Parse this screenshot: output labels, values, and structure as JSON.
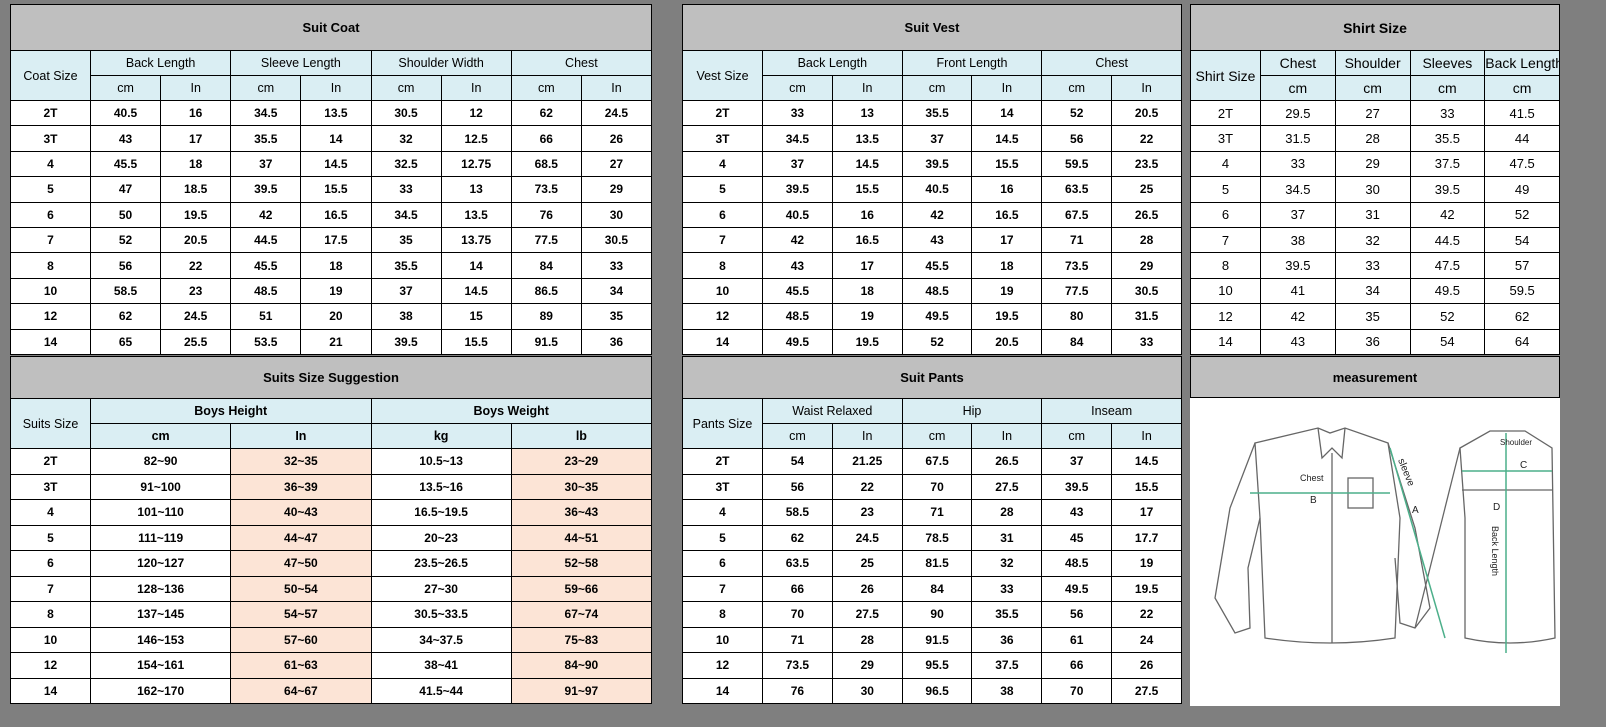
{
  "suit_coat": {
    "title": "Suit Coat",
    "size_label": "Coat Size",
    "groups": [
      "Back Length",
      "Sleeve Length",
      "Shoulder Width",
      "Chest"
    ],
    "units": [
      "cm",
      "In",
      "cm",
      "In",
      "cm",
      "In",
      "cm",
      "In"
    ],
    "rows": [
      [
        "2T",
        "40.5",
        "16",
        "34.5",
        "13.5",
        "30.5",
        "12",
        "62",
        "24.5"
      ],
      [
        "3T",
        "43",
        "17",
        "35.5",
        "14",
        "32",
        "12.5",
        "66",
        "26"
      ],
      [
        "4",
        "45.5",
        "18",
        "37",
        "14.5",
        "32.5",
        "12.75",
        "68.5",
        "27"
      ],
      [
        "5",
        "47",
        "18.5",
        "39.5",
        "15.5",
        "33",
        "13",
        "73.5",
        "29"
      ],
      [
        "6",
        "50",
        "19.5",
        "42",
        "16.5",
        "34.5",
        "13.5",
        "76",
        "30"
      ],
      [
        "7",
        "52",
        "20.5",
        "44.5",
        "17.5",
        "35",
        "13.75",
        "77.5",
        "30.5"
      ],
      [
        "8",
        "56",
        "22",
        "45.5",
        "18",
        "35.5",
        "14",
        "84",
        "33"
      ],
      [
        "10",
        "58.5",
        "23",
        "48.5",
        "19",
        "37",
        "14.5",
        "86.5",
        "34"
      ],
      [
        "12",
        "62",
        "24.5",
        "51",
        "20",
        "38",
        "15",
        "89",
        "35"
      ],
      [
        "14",
        "65",
        "25.5",
        "53.5",
        "21",
        "39.5",
        "15.5",
        "91.5",
        "36"
      ]
    ]
  },
  "suit_vest": {
    "title": "Suit Vest",
    "size_label": "Vest Size",
    "groups": [
      "Back Length",
      "Front Length",
      "Chest"
    ],
    "units": [
      "cm",
      "In",
      "cm",
      "In",
      "cm",
      "In"
    ],
    "rows": [
      [
        "2T",
        "33",
        "13",
        "35.5",
        "14",
        "52",
        "20.5"
      ],
      [
        "3T",
        "34.5",
        "13.5",
        "37",
        "14.5",
        "56",
        "22"
      ],
      [
        "4",
        "37",
        "14.5",
        "39.5",
        "15.5",
        "59.5",
        "23.5"
      ],
      [
        "5",
        "39.5",
        "15.5",
        "40.5",
        "16",
        "63.5",
        "25"
      ],
      [
        "6",
        "40.5",
        "16",
        "42",
        "16.5",
        "67.5",
        "26.5"
      ],
      [
        "7",
        "42",
        "16.5",
        "43",
        "17",
        "71",
        "28"
      ],
      [
        "8",
        "43",
        "17",
        "45.5",
        "18",
        "73.5",
        "29"
      ],
      [
        "10",
        "45.5",
        "18",
        "48.5",
        "19",
        "77.5",
        "30.5"
      ],
      [
        "12",
        "48.5",
        "19",
        "49.5",
        "19.5",
        "80",
        "31.5"
      ],
      [
        "14",
        "49.5",
        "19.5",
        "52",
        "20.5",
        "84",
        "33"
      ]
    ]
  },
  "shirt_size": {
    "title": "Shirt Size",
    "size_label": "Shirt Size",
    "groups": [
      "Chest",
      "Shoulder",
      "Sleeves",
      "Back Length"
    ],
    "units": [
      "cm",
      "cm",
      "cm",
      "cm"
    ],
    "rows": [
      [
        "2T",
        "29.5",
        "27",
        "33",
        "41.5"
      ],
      [
        "3T",
        "31.5",
        "28",
        "35.5",
        "44"
      ],
      [
        "4",
        "33",
        "29",
        "37.5",
        "47.5"
      ],
      [
        "5",
        "34.5",
        "30",
        "39.5",
        "49"
      ],
      [
        "6",
        "37",
        "31",
        "42",
        "52"
      ],
      [
        "7",
        "38",
        "32",
        "44.5",
        "54"
      ],
      [
        "8",
        "39.5",
        "33",
        "47.5",
        "57"
      ],
      [
        "10",
        "41",
        "34",
        "49.5",
        "59.5"
      ],
      [
        "12",
        "42",
        "35",
        "52",
        "62"
      ],
      [
        "14",
        "43",
        "36",
        "54",
        "64"
      ]
    ]
  },
  "suits_size_suggestion": {
    "title": "Suits Size Suggestion",
    "size_label": "Suits Size",
    "groups": [
      "Boys Height",
      "Boys Weight"
    ],
    "units": [
      "cm",
      "In",
      "kg",
      "lb"
    ],
    "highlight_color": "#fce4d6",
    "rows": [
      [
        "2T",
        "82~90",
        "32~35",
        "10.5~13",
        "23~29"
      ],
      [
        "3T",
        "91~100",
        "36~39",
        "13.5~16",
        "30~35"
      ],
      [
        "4",
        "101~110",
        "40~43",
        "16.5~19.5",
        "36~43"
      ],
      [
        "5",
        "111~119",
        "44~47",
        "20~23",
        "44~51"
      ],
      [
        "6",
        "120~127",
        "47~50",
        "23.5~26.5",
        "52~58"
      ],
      [
        "7",
        "128~136",
        "50~54",
        "27~30",
        "59~66"
      ],
      [
        "8",
        "137~145",
        "54~57",
        "30.5~33.5",
        "67~74"
      ],
      [
        "10",
        "146~153",
        "57~60",
        "34~37.5",
        "75~83"
      ],
      [
        "12",
        "154~161",
        "61~63",
        "38~41",
        "84~90"
      ],
      [
        "14",
        "162~170",
        "64~67",
        "41.5~44",
        "91~97"
      ]
    ]
  },
  "suit_pants": {
    "title": "Suit Pants",
    "size_label": "Pants Size",
    "groups": [
      "Waist Relaxed",
      "Hip",
      "Inseam"
    ],
    "units": [
      "cm",
      "In",
      "cm",
      "In",
      "cm",
      "In"
    ],
    "rows": [
      [
        "2T",
        "54",
        "21.25",
        "67.5",
        "26.5",
        "37",
        "14.5"
      ],
      [
        "3T",
        "56",
        "22",
        "70",
        "27.5",
        "39.5",
        "15.5"
      ],
      [
        "4",
        "58.5",
        "23",
        "71",
        "28",
        "43",
        "17"
      ],
      [
        "5",
        "62",
        "24.5",
        "78.5",
        "31",
        "45",
        "17.7"
      ],
      [
        "6",
        "63.5",
        "25",
        "81.5",
        "32",
        "48.5",
        "19"
      ],
      [
        "7",
        "66",
        "26",
        "84",
        "33",
        "49.5",
        "19.5"
      ],
      [
        "8",
        "70",
        "27.5",
        "90",
        "35.5",
        "56",
        "22"
      ],
      [
        "10",
        "71",
        "28",
        "91.5",
        "36",
        "61",
        "24"
      ],
      [
        "12",
        "73.5",
        "29",
        "95.5",
        "37.5",
        "66",
        "26"
      ],
      [
        "14",
        "76",
        "30",
        "96.5",
        "38",
        "70",
        "27.5"
      ]
    ]
  },
  "measurement": {
    "title": "measurement",
    "labels": {
      "chest": "Chest",
      "b": "B",
      "sleeve": "sleeve",
      "a": "A",
      "shoulder": "Shoulder",
      "c": "C",
      "d": "D",
      "back_length": "Back Length"
    },
    "line_color": "#4caf8a"
  }
}
